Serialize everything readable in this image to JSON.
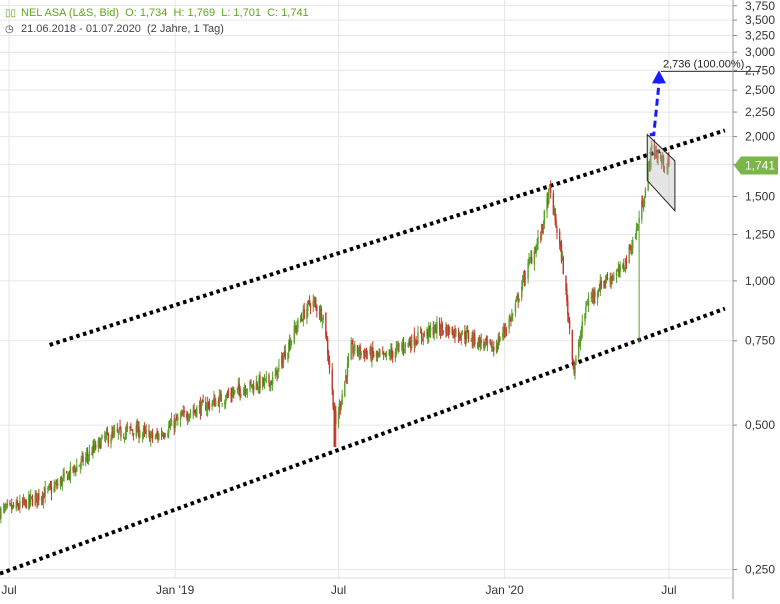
{
  "header": {
    "instrument_line": "NEL ASA (L&S, Bid)",
    "open": "O: 1,734",
    "high": "H: 1,769",
    "low": "L: 1,701",
    "close": "C: 1,741",
    "range_line": "21.06.2018 - 01.07.2020",
    "period_line": "(2 Jahre, 1 Tag)"
  },
  "chart_data": {
    "type": "candlestick",
    "y_scale": "log",
    "ylim": [
      0.22,
      3.8
    ],
    "y_ticks": [
      "3,750",
      "3,500",
      "3,250",
      "3,000",
      "2,750",
      "2,500",
      "2,250",
      "2,000",
      "1,750",
      "1,500",
      "1,250",
      "1,000",
      "0,750",
      "0,500",
      "0,250"
    ],
    "y_tick_values": [
      3.75,
      3.5,
      3.25,
      3.0,
      2.75,
      2.5,
      2.25,
      2.0,
      1.75,
      1.5,
      1.25,
      1.0,
      0.75,
      0.5,
      0.25
    ],
    "x_ticks": [
      "Jul",
      "Jan '19",
      "Jul",
      "Jan '20",
      "Jul"
    ],
    "x_tick_dates": [
      "2018-07-01",
      "2019-01-01",
      "2019-07-01",
      "2020-01-01",
      "2020-07-01"
    ],
    "xlim": [
      "2018-06-21",
      "2020-09-10"
    ],
    "last_price": "1,741",
    "last_value": 1.741,
    "target_label": "2,736 (100.00%)",
    "target_value": 2.736,
    "colors": {
      "up": "#5a9e2a",
      "down": "#c0392b",
      "last_badge": "#7ab648",
      "target_arrow": "#1a1aff",
      "grid": "#e6e6e6"
    },
    "series": {
      "close_anchors": [
        [
          "2018-06-21",
          0.33
        ],
        [
          "2018-07-15",
          0.34
        ],
        [
          "2018-08-20",
          0.37
        ],
        [
          "2018-09-20",
          0.42
        ],
        [
          "2018-10-15",
          0.47
        ],
        [
          "2018-11-15",
          0.49
        ],
        [
          "2018-12-10",
          0.47
        ],
        [
          "2019-01-15",
          0.53
        ],
        [
          "2019-02-15",
          0.56
        ],
        [
          "2019-03-20",
          0.6
        ],
        [
          "2019-04-20",
          0.62
        ],
        [
          "2019-05-15",
          0.8
        ],
        [
          "2019-06-01",
          0.91
        ],
        [
          "2019-06-15",
          0.84
        ],
        [
          "2019-06-28",
          0.5
        ],
        [
          "2019-07-15",
          0.72
        ],
        [
          "2019-08-20",
          0.69
        ],
        [
          "2019-09-20",
          0.75
        ],
        [
          "2019-10-20",
          0.8
        ],
        [
          "2019-11-20",
          0.77
        ],
        [
          "2019-12-20",
          0.72
        ],
        [
          "2020-01-10",
          0.85
        ],
        [
          "2020-01-25",
          1.05
        ],
        [
          "2020-02-10",
          1.25
        ],
        [
          "2020-02-20",
          1.55
        ],
        [
          "2020-03-05",
          1.1
        ],
        [
          "2020-03-18",
          0.65
        ],
        [
          "2020-04-01",
          0.9
        ],
        [
          "2020-04-20",
          1.0
        ],
        [
          "2020-05-10",
          1.05
        ],
        [
          "2020-05-25",
          1.25
        ],
        [
          "2020-06-05",
          1.55
        ],
        [
          "2020-06-12",
          1.9
        ],
        [
          "2020-06-22",
          1.78
        ],
        [
          "2020-07-01",
          1.741
        ]
      ],
      "outlier_lows": [
        [
          "2019-06-27",
          0.45
        ],
        [
          "2020-05-30",
          0.74
        ]
      ]
    },
    "trendlines": [
      {
        "name": "upper-channel",
        "style": "dotted",
        "start": [
          "2018-08-15",
          0.735
        ],
        "end": [
          "2020-09-01",
          2.06
        ]
      },
      {
        "name": "lower-channel",
        "style": "dotted",
        "start": [
          "2018-06-21",
          0.245
        ],
        "end": [
          "2020-09-01",
          0.875
        ]
      }
    ],
    "flag": {
      "start_date": "2020-06-07",
      "end_date": "2020-07-01",
      "top_start": 2.02,
      "top_end": 1.78,
      "bottom_start": 1.62,
      "bottom_end": 1.4
    },
    "target_arrow": {
      "from": [
        "2020-06-12",
        2.0
      ],
      "to": [
        "2020-06-20",
        2.736
      ]
    }
  }
}
